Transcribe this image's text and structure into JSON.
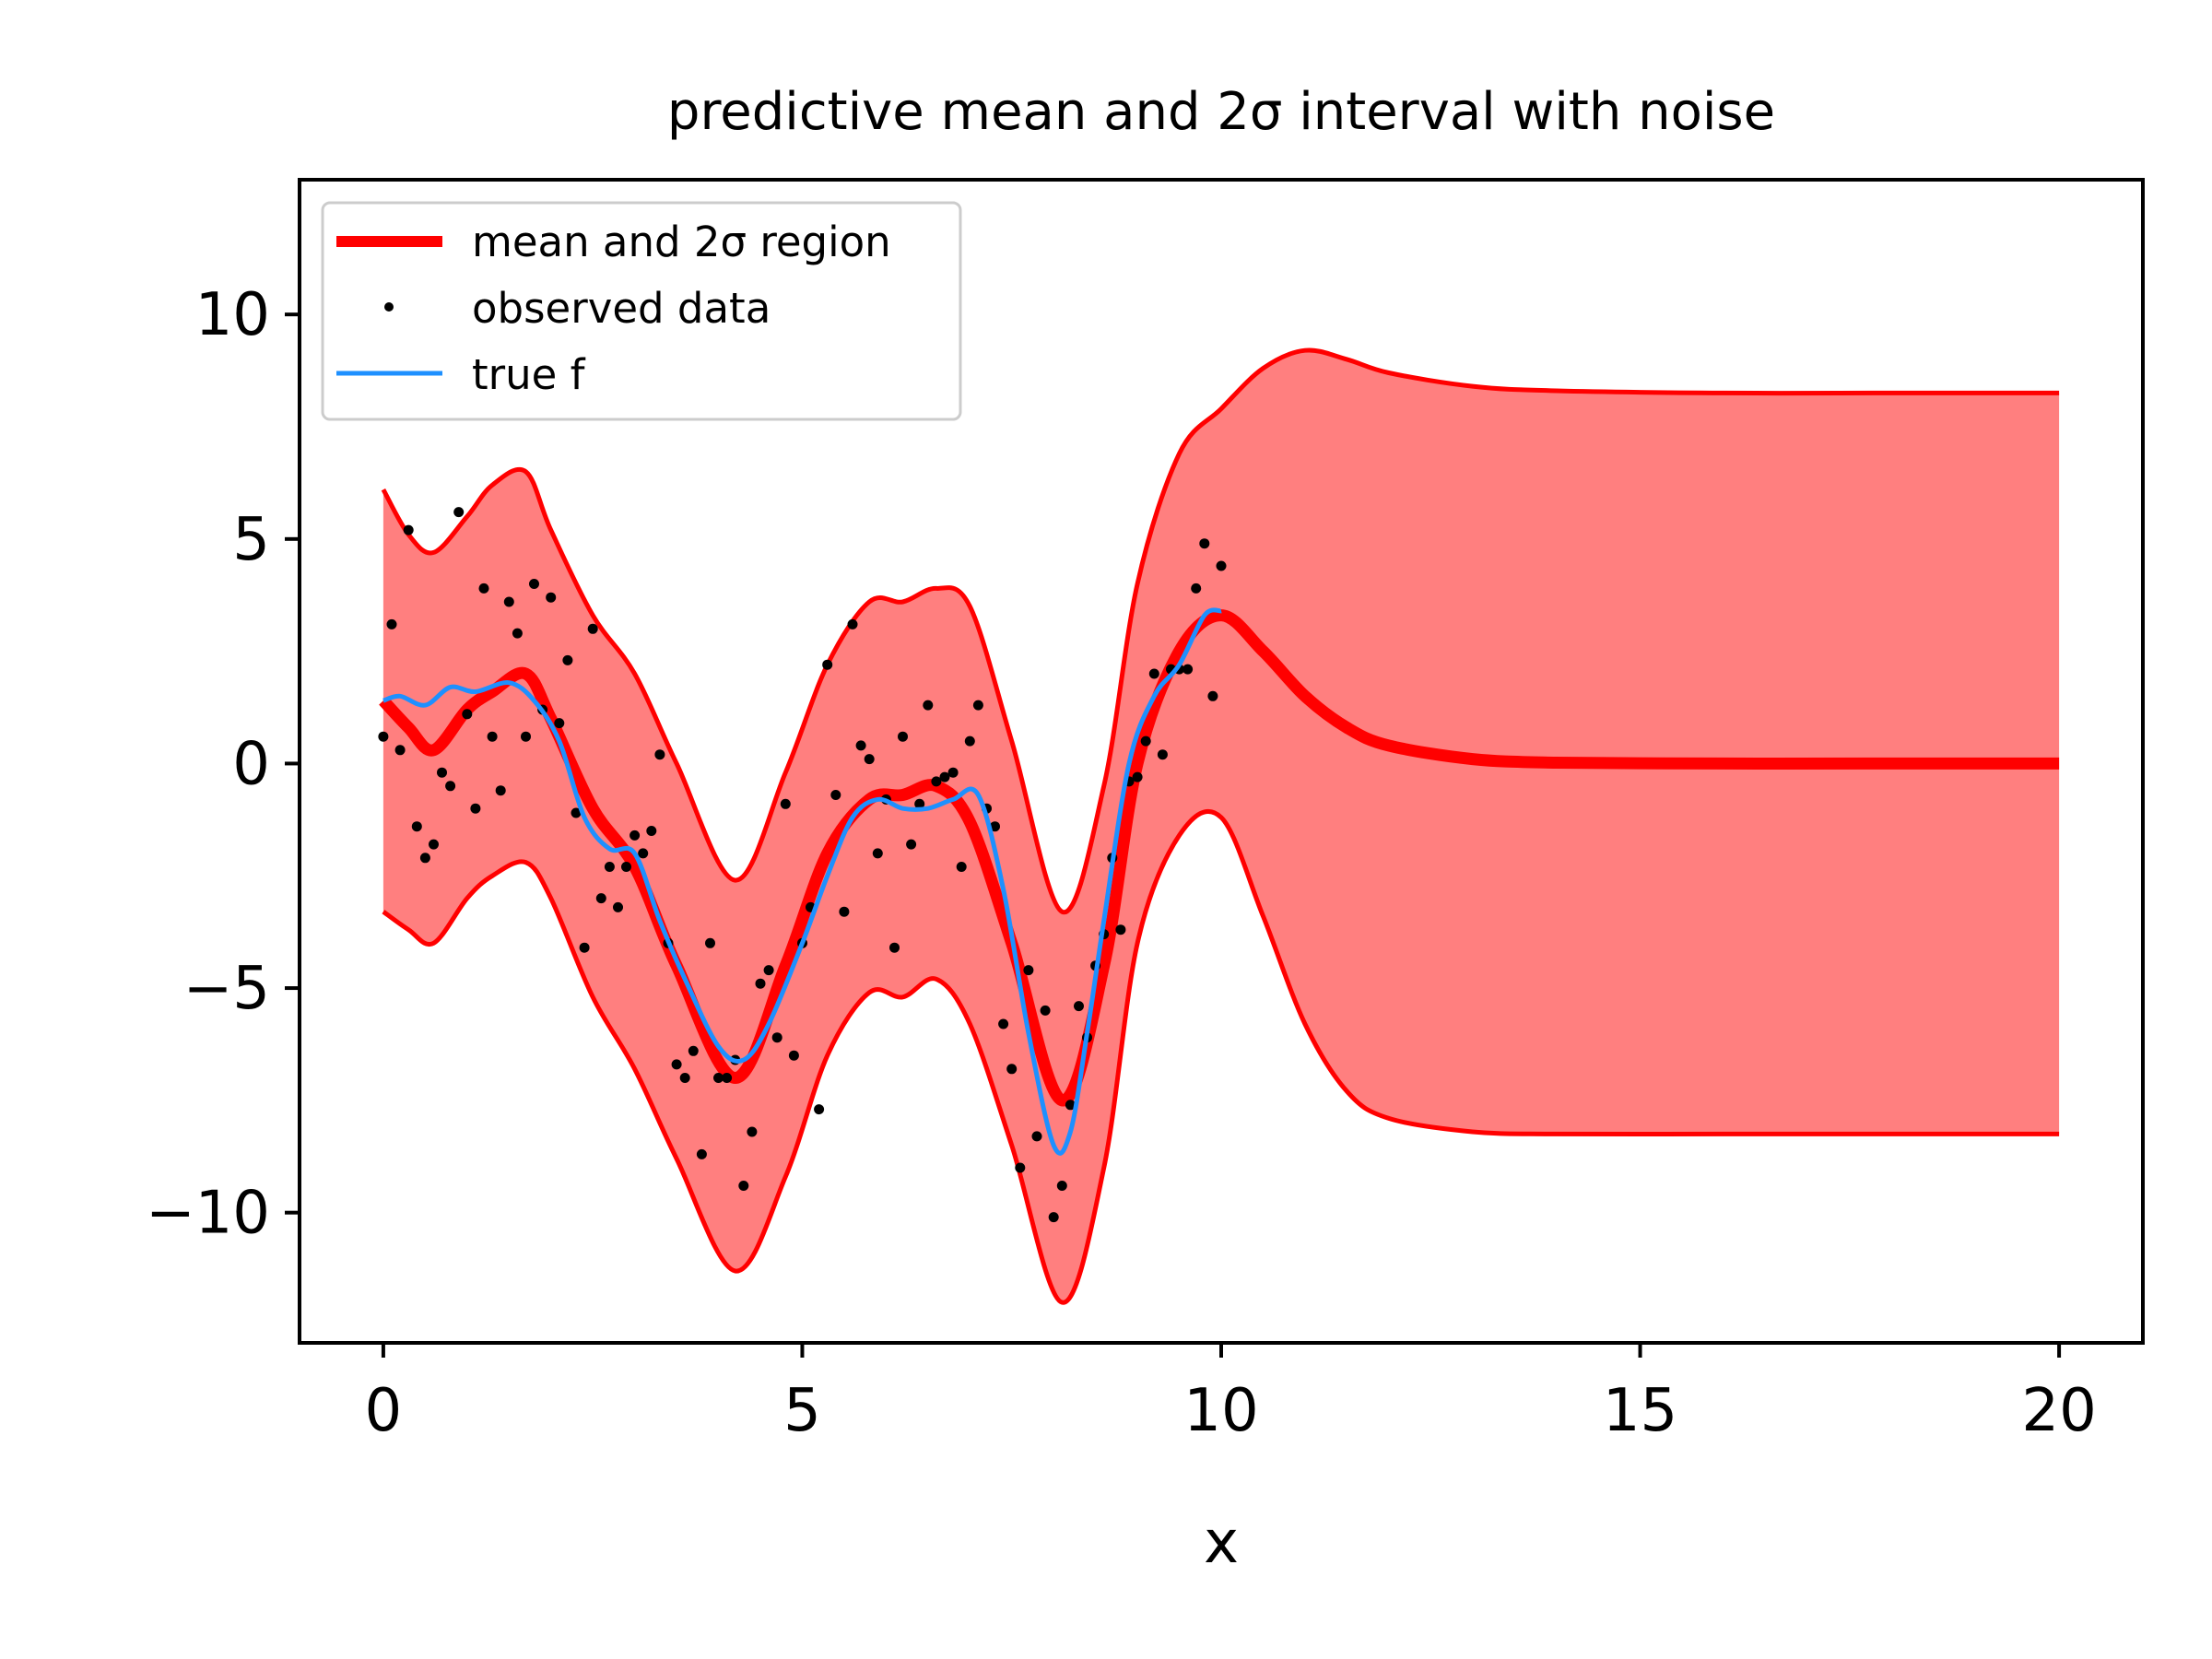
{
  "chart_data": {
    "type": "line",
    "title": "predictive mean and 2σ interval with noise",
    "xlabel": "x",
    "ylabel": "",
    "xlim": [
      -1,
      21
    ],
    "ylim": [
      -12.9,
      13
    ],
    "grid": false,
    "xticks": [
      0,
      5,
      10,
      15,
      20
    ],
    "xtick_labels": [
      "0",
      "5",
      "10",
      "15",
      "20"
    ],
    "yticks": [
      10,
      5,
      0,
      -5,
      -10
    ],
    "ytick_labels": [
      "10",
      "5",
      "0",
      "−5",
      "−10"
    ],
    "legend": {
      "position": "top-left",
      "entries": [
        "mean and 2σ region",
        "observed data",
        "true f"
      ]
    },
    "colors": {
      "band": "#ff0000",
      "band_fill": "#ff7f7f",
      "mean": "#ff0000",
      "true_f": "#1e90ff",
      "points": "#000000"
    },
    "series": [
      {
        "name": "mean and 2σ region",
        "kind": "mean_with_band",
        "x": [
          0,
          0.3,
          0.6,
          1.0,
          1.3,
          1.7,
          2.0,
          2.5,
          3.0,
          3.5,
          4.2,
          4.8,
          5.3,
          5.8,
          6.2,
          6.6,
          7.0,
          7.5,
          8.1,
          8.6,
          9.0,
          9.5,
          10.0,
          10.5,
          11.0,
          11.5,
          12.0,
          13.0,
          14.0,
          16.0,
          18.0,
          20.0
        ],
        "mean": [
          1.4,
          0.8,
          0.3,
          1.2,
          1.6,
          2.0,
          1.0,
          -1.0,
          -2.3,
          -4.5,
          -7.0,
          -4.5,
          -2.0,
          -0.8,
          -0.7,
          -0.5,
          -1.3,
          -4.0,
          -7.5,
          -4.5,
          0.0,
          2.5,
          3.3,
          2.5,
          1.5,
          0.8,
          0.4,
          0.1,
          0.02,
          0,
          0,
          0
        ],
        "upper": [
          6.1,
          5.1,
          4.7,
          5.5,
          6.2,
          6.5,
          5.2,
          3.3,
          2.0,
          0.0,
          -2.6,
          -0.2,
          2.2,
          3.6,
          3.6,
          3.9,
          3.5,
          0.5,
          -3.3,
          -0.5,
          4.0,
          6.9,
          7.9,
          8.8,
          9.2,
          9.0,
          8.7,
          8.4,
          8.3,
          8.25,
          8.25,
          8.25
        ],
        "lower": [
          -3.3,
          -3.7,
          -4.0,
          -3.0,
          -2.5,
          -2.2,
          -3.0,
          -5.2,
          -6.8,
          -8.8,
          -11.3,
          -9.2,
          -6.5,
          -5.1,
          -5.2,
          -4.8,
          -5.8,
          -8.5,
          -12.0,
          -9.0,
          -4.0,
          -1.6,
          -1.2,
          -3.4,
          -5.8,
          -7.3,
          -7.9,
          -8.2,
          -8.25,
          -8.25,
          -8.25,
          -8.25
        ]
      },
      {
        "name": "true f",
        "kind": "line",
        "x": [
          0,
          0.2,
          0.5,
          0.8,
          1.1,
          1.5,
          1.8,
          2.1,
          2.4,
          2.7,
          3.0,
          3.3,
          3.6,
          4.0,
          4.3,
          4.6,
          5.0,
          5.3,
          5.6,
          5.9,
          6.2,
          6.5,
          6.8,
          7.1,
          7.4,
          7.7,
          8.0,
          8.2,
          8.4,
          8.6,
          8.9,
          9.2,
          9.5,
          9.8,
          10.0
        ],
        "values": [
          1.4,
          1.5,
          1.3,
          1.7,
          1.6,
          1.8,
          1.4,
          0.5,
          -1.2,
          -1.9,
          -2.0,
          -3.5,
          -4.8,
          -6.3,
          -6.6,
          -5.8,
          -4.0,
          -2.5,
          -1.2,
          -0.8,
          -1.0,
          -1.0,
          -0.8,
          -0.7,
          -2.8,
          -6.0,
          -8.5,
          -8.2,
          -6.0,
          -3.5,
          0.0,
          1.5,
          2.2,
          3.3,
          3.4
        ]
      },
      {
        "name": "observed data",
        "kind": "scatter",
        "points": [
          [
            0.0,
            0.6
          ],
          [
            0.1,
            3.1
          ],
          [
            0.2,
            0.3
          ],
          [
            0.3,
            5.2
          ],
          [
            0.4,
            -1.4
          ],
          [
            0.5,
            -2.1
          ],
          [
            0.6,
            -1.8
          ],
          [
            0.7,
            -0.2
          ],
          [
            0.8,
            -0.5
          ],
          [
            0.9,
            5.6
          ],
          [
            1.0,
            1.1
          ],
          [
            1.1,
            -1.0
          ],
          [
            1.2,
            3.9
          ],
          [
            1.3,
            0.6
          ],
          [
            1.4,
            -0.6
          ],
          [
            1.5,
            3.6
          ],
          [
            1.6,
            2.9
          ],
          [
            1.7,
            0.6
          ],
          [
            1.8,
            4.0
          ],
          [
            1.9,
            1.2
          ],
          [
            2.0,
            3.7
          ],
          [
            2.1,
            0.9
          ],
          [
            2.2,
            2.3
          ],
          [
            2.3,
            -1.1
          ],
          [
            2.4,
            -4.1
          ],
          [
            2.5,
            3.0
          ],
          [
            2.6,
            -3.0
          ],
          [
            2.7,
            -2.3
          ],
          [
            2.8,
            -3.2
          ],
          [
            2.9,
            -2.3
          ],
          [
            3.0,
            -1.6
          ],
          [
            3.1,
            -2.0
          ],
          [
            3.2,
            -1.5
          ],
          [
            3.3,
            0.2
          ],
          [
            3.4,
            -4.0
          ],
          [
            3.5,
            -6.7
          ],
          [
            3.6,
            -7.0
          ],
          [
            3.7,
            -6.4
          ],
          [
            3.8,
            -8.7
          ],
          [
            3.9,
            -4.0
          ],
          [
            4.0,
            -7.0
          ],
          [
            4.1,
            -7.0
          ],
          [
            4.2,
            -6.6
          ],
          [
            4.3,
            -9.4
          ],
          [
            4.4,
            -8.2
          ],
          [
            4.5,
            -4.9
          ],
          [
            4.6,
            -4.6
          ],
          [
            4.7,
            -6.1
          ],
          [
            4.8,
            -0.9
          ],
          [
            4.9,
            -6.5
          ],
          [
            5.0,
            -4.0
          ],
          [
            5.1,
            -3.2
          ],
          [
            5.2,
            -7.7
          ],
          [
            5.3,
            2.2
          ],
          [
            5.4,
            -0.7
          ],
          [
            5.5,
            -3.3
          ],
          [
            5.6,
            3.1
          ],
          [
            5.7,
            0.4
          ],
          [
            5.8,
            0.1
          ],
          [
            5.9,
            -2.0
          ],
          [
            6.0,
            -0.8
          ],
          [
            6.1,
            -4.1
          ],
          [
            6.2,
            0.6
          ],
          [
            6.3,
            -1.8
          ],
          [
            6.4,
            -0.9
          ],
          [
            6.5,
            1.3
          ],
          [
            6.6,
            -0.4
          ],
          [
            6.7,
            -0.3
          ],
          [
            6.8,
            -0.2
          ],
          [
            6.9,
            -2.3
          ],
          [
            7.0,
            0.5
          ],
          [
            7.1,
            1.3
          ],
          [
            7.2,
            -1.0
          ],
          [
            7.3,
            -1.4
          ],
          [
            7.4,
            -5.8
          ],
          [
            7.5,
            -6.8
          ],
          [
            7.6,
            -9.0
          ],
          [
            7.7,
            -4.6
          ],
          [
            7.8,
            -8.3
          ],
          [
            7.9,
            -5.5
          ],
          [
            8.0,
            -10.1
          ],
          [
            8.1,
            -9.4
          ],
          [
            8.2,
            -7.6
          ],
          [
            8.3,
            -5.4
          ],
          [
            8.4,
            -6.1
          ],
          [
            8.5,
            -4.5
          ],
          [
            8.6,
            -3.8
          ],
          [
            8.7,
            -2.1
          ],
          [
            8.8,
            -3.7
          ],
          [
            8.9,
            -0.4
          ],
          [
            9.0,
            -0.3
          ],
          [
            9.1,
            0.5
          ],
          [
            9.2,
            2.0
          ],
          [
            9.3,
            0.2
          ],
          [
            9.4,
            2.1
          ],
          [
            9.5,
            2.1
          ],
          [
            9.6,
            2.1
          ],
          [
            9.7,
            3.9
          ],
          [
            9.8,
            4.9
          ],
          [
            9.9,
            1.5
          ],
          [
            10.0,
            4.4
          ]
        ]
      }
    ]
  }
}
